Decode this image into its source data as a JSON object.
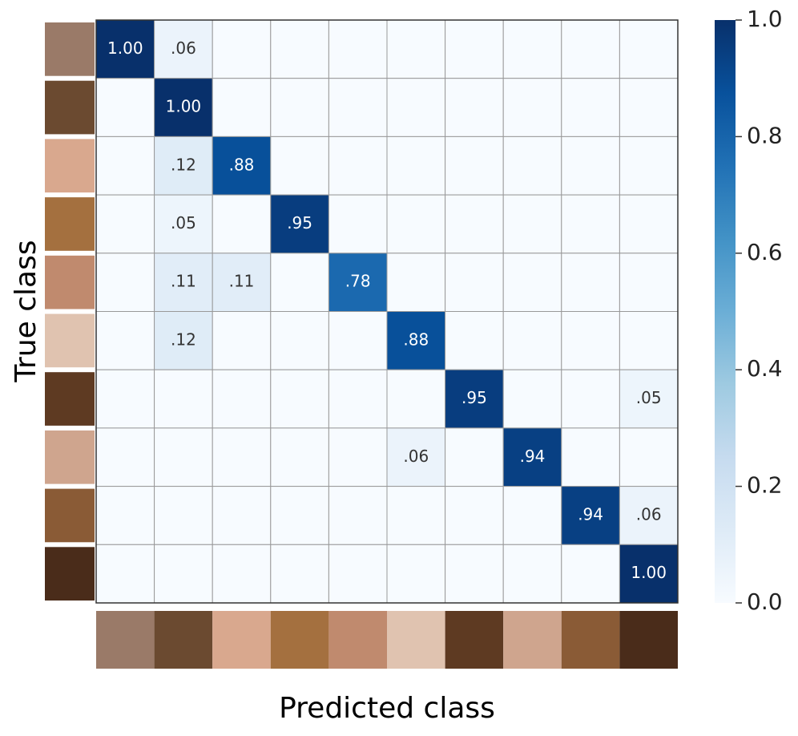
{
  "chart_data": {
    "type": "heatmap",
    "xlabel": "Predicted class",
    "ylabel": "True class",
    "colormap": "Blues",
    "values": [
      [
        1,
        0.06,
        0,
        0,
        0,
        0,
        0,
        0,
        0,
        0
      ],
      [
        0,
        1,
        0,
        0,
        0,
        0,
        0,
        0,
        0,
        0
      ],
      [
        0,
        0.12,
        0.88,
        0,
        0,
        0,
        0,
        0,
        0,
        0
      ],
      [
        0,
        0.05,
        0,
        0.95,
        0,
        0,
        0,
        0,
        0,
        0
      ],
      [
        0,
        0.11,
        0.11,
        0,
        0.78,
        0,
        0,
        0,
        0,
        0
      ],
      [
        0,
        0.12,
        0,
        0,
        0,
        0.88,
        0,
        0,
        0,
        0
      ],
      [
        0,
        0,
        0,
        0,
        0,
        0,
        0.95,
        0,
        0,
        0.05
      ],
      [
        0,
        0,
        0,
        0,
        0,
        0.06,
        0,
        0.94,
        0,
        0
      ],
      [
        0,
        0,
        0,
        0,
        0,
        0,
        0,
        0,
        0.94,
        0.06
      ],
      [
        0,
        0,
        0,
        0,
        0,
        0,
        0,
        0,
        0,
        1
      ]
    ],
    "value_labels": [
      [
        "1.00",
        ".06",
        null,
        null,
        null,
        null,
        null,
        null,
        null,
        null
      ],
      [
        null,
        "1.00",
        null,
        null,
        null,
        null,
        null,
        null,
        null,
        null
      ],
      [
        null,
        ".12",
        ".88",
        null,
        null,
        null,
        null,
        null,
        null,
        null
      ],
      [
        null,
        ".05",
        null,
        ".95",
        null,
        null,
        null,
        null,
        null,
        null
      ],
      [
        null,
        ".11",
        ".11",
        null,
        ".78",
        null,
        null,
        null,
        null,
        null
      ],
      [
        null,
        ".12",
        null,
        null,
        null,
        ".88",
        null,
        null,
        null,
        null
      ],
      [
        null,
        null,
        null,
        null,
        null,
        null,
        ".95",
        null,
        null,
        ".05"
      ],
      [
        null,
        null,
        null,
        null,
        null,
        ".06",
        null,
        ".94",
        null,
        null
      ],
      [
        null,
        null,
        null,
        null,
        null,
        null,
        null,
        null,
        ".94",
        ".06"
      ],
      [
        null,
        null,
        null,
        null,
        null,
        null,
        null,
        null,
        null,
        "1.00"
      ]
    ],
    "clim": [
      0,
      1
    ],
    "cticks": [
      {
        "value": 0,
        "label": "0.0"
      },
      0.2,
      0.4,
      0.6,
      0.8,
      {
        "value": 1,
        "label": "1.0"
      }
    ]
  }
}
